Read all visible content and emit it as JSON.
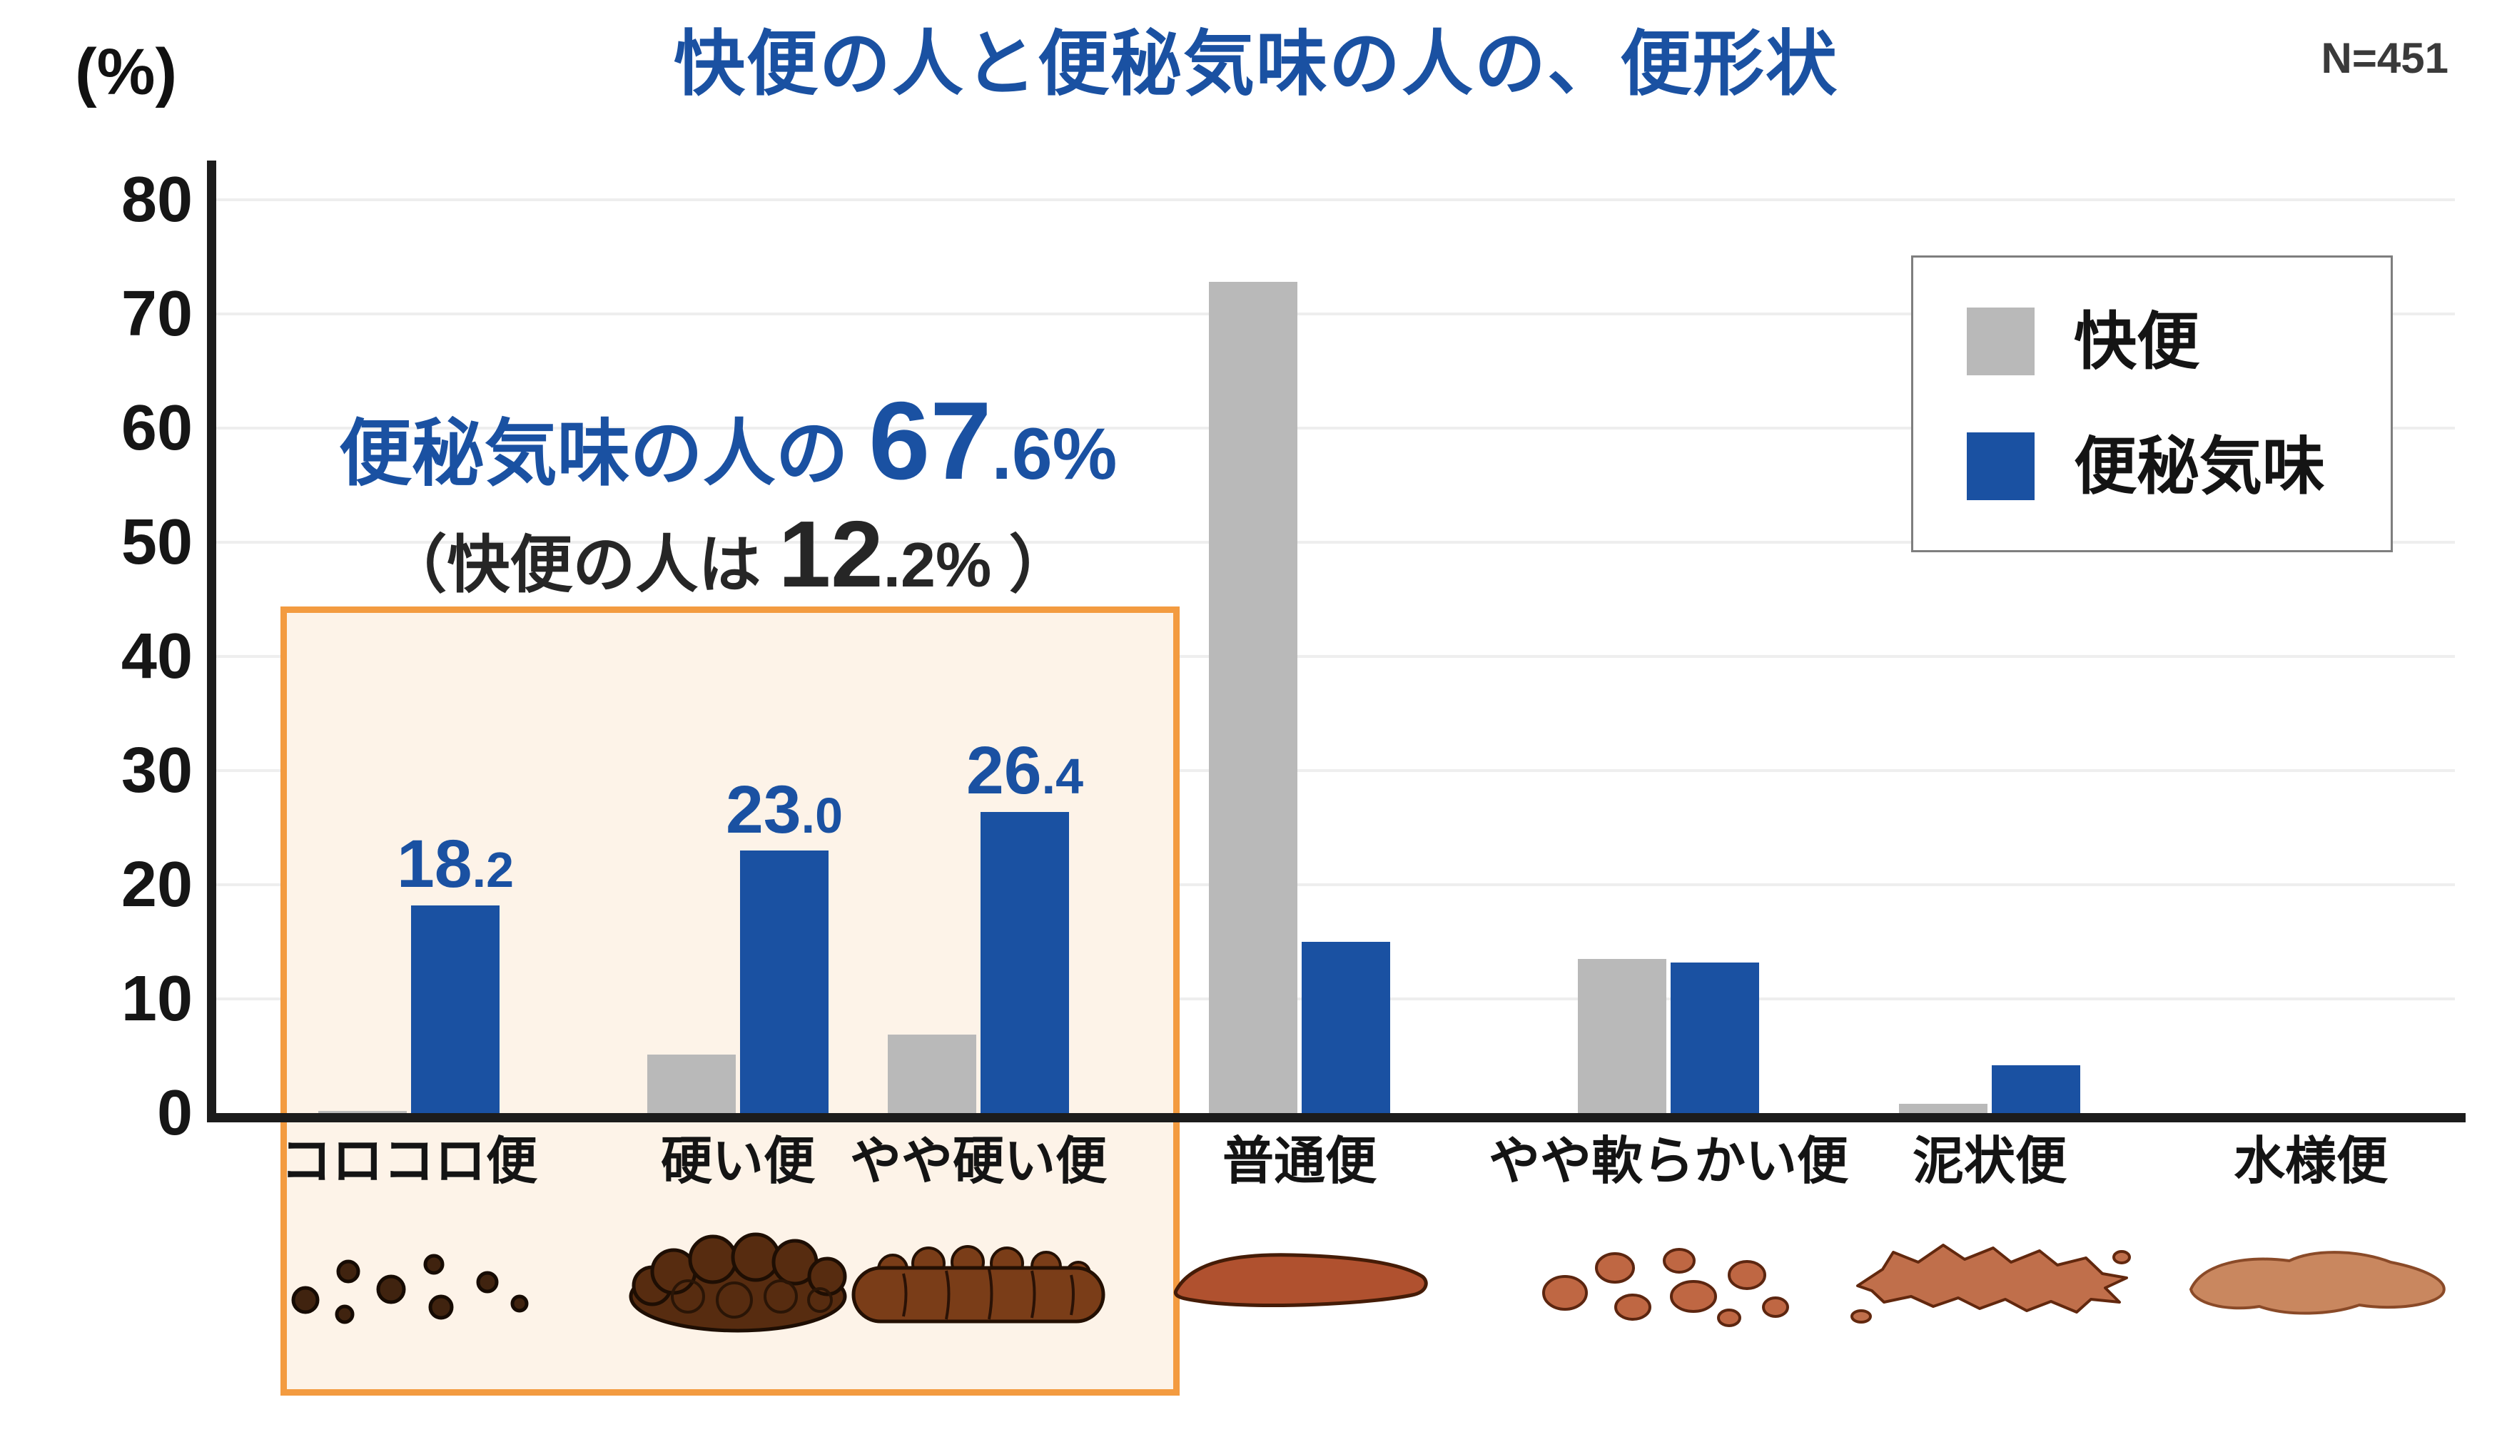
{
  "chart_data": {
    "type": "bar",
    "title": "快便の人と便秘気味の人の、便形状",
    "sample_size_label": "N=451",
    "y_axis_unit_label": "(%)",
    "y_ticks": [
      0,
      10,
      20,
      30,
      40,
      50,
      60,
      70,
      80
    ],
    "ylim": [
      0,
      80
    ],
    "grid": true,
    "legend_position": "top-right",
    "categories": [
      "コロコロ便",
      "硬い便",
      "やや硬い便",
      "普通便",
      "やや軟らかい便",
      "泥状便",
      "水様便"
    ],
    "category_icons": [
      "pellet-stool",
      "hard-stool",
      "slightly-hard-stool",
      "normal-stool",
      "slightly-soft-stool",
      "muddy-stool",
      "watery-stool"
    ],
    "series": [
      {
        "name": "快便",
        "color": "#b9b9b9",
        "values": [
          0.2,
          5.1,
          6.9,
          72.8,
          13.5,
          0.8,
          0.0
        ],
        "labels": [
          null,
          null,
          null,
          null,
          null,
          null,
          null
        ]
      },
      {
        "name": "便秘気味",
        "color": "#1a51a2",
        "values": [
          18.2,
          23.0,
          26.4,
          15.0,
          13.2,
          4.2,
          0.0
        ],
        "labels": [
          "18.2",
          "23.0",
          "26.4",
          null,
          null,
          null,
          null
        ]
      }
    ],
    "annotation": {
      "line1_prefix": "便秘気味の人の ",
      "line1_value": "67.6%",
      "line2_prefix": "（快便の人は ",
      "line2_value": "12.2%",
      "line2_suffix": " ）",
      "highlight_categories": [
        "コロコロ便",
        "硬い便",
        "やや硬い便"
      ]
    },
    "colors": {
      "highlight_border": "#f39b40",
      "highlight_bg": "#fdf3e8",
      "title": "#1a51a2",
      "bar_gray": "#b9b9b9",
      "bar_blue": "#1a51a2"
    }
  }
}
